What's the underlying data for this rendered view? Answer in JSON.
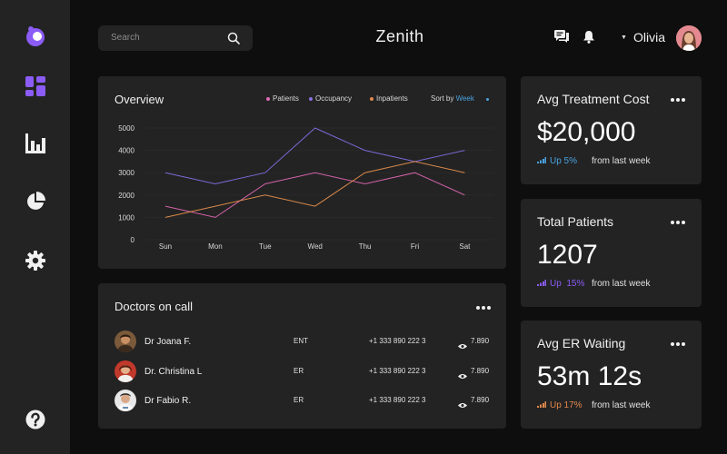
{
  "header": {
    "search_placeholder": "Search",
    "title": "Zenith",
    "user_name": "Olivia",
    "user_caret": "▼"
  },
  "colors": {
    "accent": "#8b5cf6",
    "patients": "#e06ab8",
    "occupancy": "#8b6fe0",
    "inpatients": "#e0884a",
    "link": "#4aa3e0"
  },
  "sidebar": {
    "items": [
      {
        "icon": "logo-icon"
      },
      {
        "icon": "dashboard-icon"
      },
      {
        "icon": "bar-chart-icon"
      },
      {
        "icon": "pie-chart-icon"
      },
      {
        "icon": "settings-icon"
      },
      {
        "icon": "help-icon"
      }
    ]
  },
  "overview": {
    "title": "Overview",
    "legend": [
      "Patients",
      "Occupancy",
      "Inpatients"
    ],
    "sort_label": "Sort by",
    "sort_value": "Week"
  },
  "chart_data": {
    "type": "line",
    "categories": [
      "Sun",
      "Mon",
      "Tue",
      "Wed",
      "Thu",
      "Fri",
      "Sat"
    ],
    "series": [
      {
        "name": "Patients",
        "color": "#d162a8",
        "values": [
          1500,
          1000,
          2500,
          3000,
          2500,
          3000,
          2000
        ]
      },
      {
        "name": "Occupancy",
        "color": "#7d68d6",
        "values": [
          3000,
          2500,
          3000,
          5000,
          4000,
          3500,
          4000
        ]
      },
      {
        "name": "Inpatients",
        "color": "#d9894a",
        "values": [
          1000,
          1500,
          2000,
          1500,
          3000,
          3500,
          3000
        ]
      }
    ],
    "yticks": [
      "0",
      "1000",
      "2000",
      "3000",
      "4000",
      "5000"
    ],
    "ylim": [
      0,
      5000
    ],
    "grid": true,
    "legend_position": "top-right"
  },
  "doctors": {
    "title": "Doctors on call",
    "rows": [
      {
        "name": "Dr Joana F.",
        "dept": "ENT",
        "phone": "+1 333 890 222 3",
        "views": "7.890"
      },
      {
        "name": "Dr. Christina L",
        "dept": "ER",
        "phone": "+1 333 890 222 3",
        "views": "7.890"
      },
      {
        "name": "Dr Fabio R.",
        "dept": "ER",
        "phone": "+1 333 890 222 3",
        "views": "7.890"
      }
    ]
  },
  "stats": [
    {
      "title": "Avg Treatment Cost",
      "value": "$20,000",
      "trend": "Up 5%",
      "trend_color": "#4aa3e0",
      "from": "from last week"
    },
    {
      "title": "Total Patients",
      "value": "1207",
      "trend": "Up  15%",
      "trend_color": "#8b5cf6",
      "from": "from last week"
    },
    {
      "title": "Avg ER Waiting",
      "value": "53m 12s",
      "trend": "Up 17%",
      "trend_color": "#e0884a",
      "from": "from last week"
    }
  ]
}
